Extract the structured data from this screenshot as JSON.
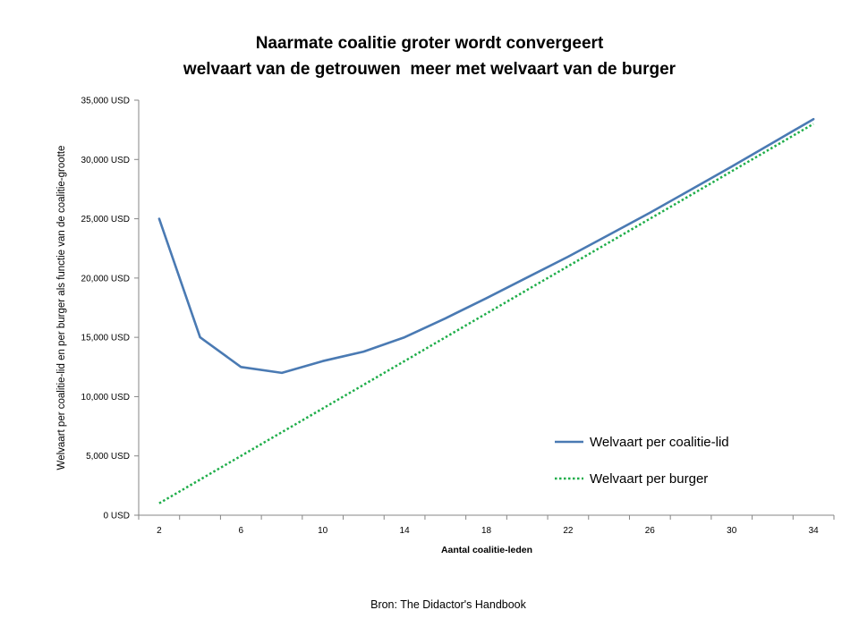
{
  "chart_data": {
    "type": "line",
    "title_lines": [
      "Naarmate coalitie groter wordt convergeert",
      "welvaart van de getrouwen  meer met welvaart van de burger"
    ],
    "xlabel": "Aantal coalitie-leden",
    "ylabel": "Welvaart per coalitie-lid en per burger als functie van de coalitie-grootte",
    "x": [
      2,
      4,
      6,
      8,
      10,
      12,
      14,
      16,
      18,
      20,
      22,
      24,
      26,
      28,
      30,
      32,
      34
    ],
    "x_tick_labels": [
      "2",
      "6",
      "10",
      "14",
      "18",
      "22",
      "26",
      "30",
      "34"
    ],
    "x_tick_values": [
      2,
      6,
      10,
      14,
      18,
      22,
      26,
      30,
      34
    ],
    "y_tick_labels": [
      "0 USD",
      "5,000 USD",
      "10,000 USD",
      "15,000 USD",
      "20,000 USD",
      "25,000 USD",
      "30,000 USD",
      "35,000 USD"
    ],
    "y_tick_values": [
      0,
      5000,
      10000,
      15000,
      20000,
      25000,
      30000,
      35000
    ],
    "ylim": [
      0,
      35000
    ],
    "grid": false,
    "legend_position": "right",
    "series": [
      {
        "name": "Welvaart per coalitie-lid",
        "color": "#4a7ab3",
        "style": "solid",
        "values": [
          25000,
          15000,
          12500,
          12000,
          13000,
          13800,
          15000,
          16600,
          18300,
          20050,
          21800,
          23650,
          25500,
          27450,
          29400,
          31400,
          33400
        ]
      },
      {
        "name": "Welvaart per burger",
        "color": "#1fae4a",
        "style": "dotted",
        "values": [
          1000,
          3000,
          5000,
          7000,
          9000,
          11000,
          13000,
          15000,
          17000,
          19000,
          21000,
          23000,
          25000,
          27000,
          29000,
          31000,
          33000
        ]
      }
    ]
  },
  "source": "Bron: The Didactor's Handbook"
}
